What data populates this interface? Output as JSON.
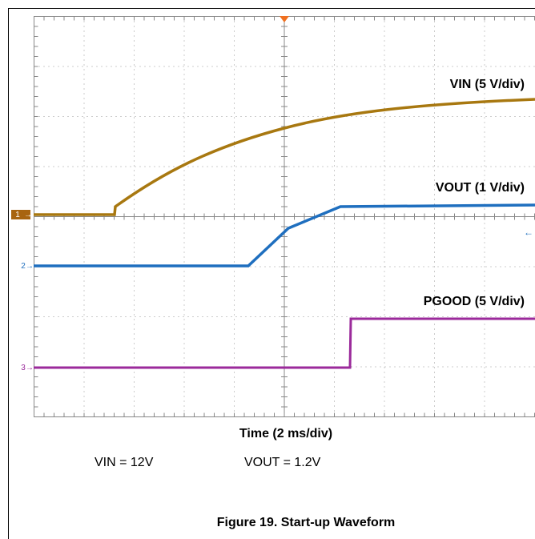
{
  "figure": {
    "traces": [
      {
        "label": "VIN (5 V/div)",
        "marker": "1"
      },
      {
        "label": "VOUT (1 V/div)",
        "marker": "2"
      },
      {
        "label": "PGOOD (5 V/div)",
        "marker": "3"
      }
    ],
    "time_label": "Time (2 ms/div)",
    "conditions": [
      "VIN = 12V",
      "VOUT = 1.2V"
    ],
    "caption": "Figure 19. Start-up Waveform"
  }
}
